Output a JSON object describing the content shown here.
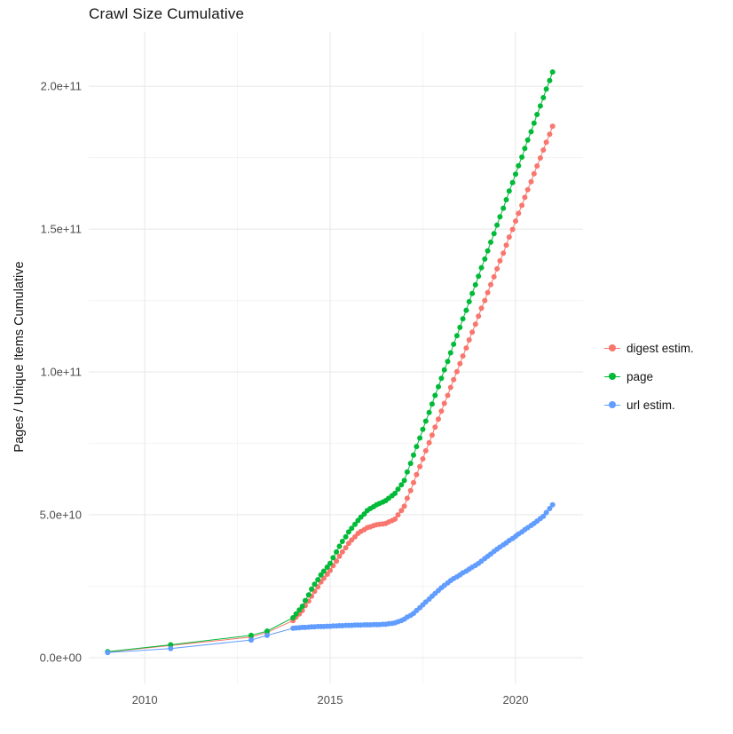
{
  "chart_data": {
    "type": "scatter",
    "title": "Crawl Size Cumulative",
    "xlabel": "",
    "ylabel": "Pages / Unique Items Cumulative",
    "legend_position": "right",
    "grid": {
      "on": true,
      "major_color": "#e7e7e7",
      "minor_color": "#f3f3f3"
    },
    "x_unit": "year",
    "y_values_in": "1e9 items",
    "xlim": [
      2008.49,
      2021.82
    ],
    "ylim_e9": [
      -9,
      219
    ],
    "xticks": [
      {
        "value": 2010,
        "label": "2010"
      },
      {
        "value": 2015,
        "label": "2015"
      },
      {
        "value": 2020,
        "label": "2020"
      }
    ],
    "yticks": [
      {
        "value_e9": 0,
        "label": "0.0e+00"
      },
      {
        "value_e9": 50,
        "label": "5.0e+10"
      },
      {
        "value_e9": 100,
        "label": "1.0e+11"
      },
      {
        "value_e9": 150,
        "label": "1.5e+11"
      },
      {
        "value_e9": 200,
        "label": "2.0e+11"
      }
    ],
    "x_minor": [
      2012.5,
      2017.5
    ],
    "y_minor_e9": [
      25,
      75,
      125,
      175
    ],
    "series": [
      {
        "name": "digest estim.",
        "color": "#F8766D",
        "points": [
          [
            2009.0,
            2.0
          ],
          [
            2010.7,
            4.3
          ],
          [
            2012.87,
            7.2
          ],
          [
            2013.3,
            8.8
          ],
          [
            2014.0,
            13.0
          ],
          [
            2014.08,
            14.2
          ],
          [
            2014.17,
            15.3
          ],
          [
            2014.25,
            16.5
          ],
          [
            2014.33,
            18.2
          ],
          [
            2014.42,
            19.8
          ],
          [
            2014.5,
            21.5
          ],
          [
            2014.58,
            23.2
          ],
          [
            2014.67,
            24.8
          ],
          [
            2014.75,
            26.5
          ],
          [
            2014.83,
            27.8
          ],
          [
            2014.92,
            29.2
          ],
          [
            2015.0,
            30.5
          ],
          [
            2015.08,
            32.2
          ],
          [
            2015.17,
            33.8
          ],
          [
            2015.25,
            35.5
          ],
          [
            2015.33,
            37.0
          ],
          [
            2015.42,
            38.5
          ],
          [
            2015.5,
            40.0
          ],
          [
            2015.58,
            41.2
          ],
          [
            2015.67,
            42.3
          ],
          [
            2015.75,
            43.5
          ],
          [
            2015.83,
            44.2
          ],
          [
            2015.92,
            44.8
          ],
          [
            2016.0,
            45.5
          ],
          [
            2016.08,
            45.8
          ],
          [
            2016.17,
            46.2
          ],
          [
            2016.25,
            46.5
          ],
          [
            2016.33,
            46.7
          ],
          [
            2016.42,
            46.8
          ],
          [
            2016.5,
            47.0
          ],
          [
            2016.58,
            47.5
          ],
          [
            2016.67,
            48.0
          ],
          [
            2016.75,
            48.5
          ],
          [
            2016.83,
            50.0
          ],
          [
            2016.92,
            51.5
          ],
          [
            2017.0,
            53.0
          ],
          [
            2017.08,
            55.8
          ],
          [
            2017.17,
            58.5
          ],
          [
            2017.25,
            61.3
          ],
          [
            2017.33,
            64.1
          ],
          [
            2017.42,
            66.9
          ],
          [
            2017.5,
            69.6
          ],
          [
            2017.58,
            72.4
          ],
          [
            2017.67,
            75.2
          ],
          [
            2017.75,
            77.9
          ],
          [
            2017.83,
            80.7
          ],
          [
            2017.92,
            83.5
          ],
          [
            2018.0,
            86.3
          ],
          [
            2018.08,
            89.0
          ],
          [
            2018.17,
            91.8
          ],
          [
            2018.25,
            94.6
          ],
          [
            2018.33,
            97.3
          ],
          [
            2018.42,
            100.1
          ],
          [
            2018.5,
            102.9
          ],
          [
            2018.58,
            105.6
          ],
          [
            2018.67,
            108.4
          ],
          [
            2018.75,
            111.2
          ],
          [
            2018.83,
            113.9
          ],
          [
            2018.92,
            116.7
          ],
          [
            2019.0,
            119.5
          ],
          [
            2019.08,
            122.3
          ],
          [
            2019.17,
            125.0
          ],
          [
            2019.25,
            127.8
          ],
          [
            2019.33,
            130.6
          ],
          [
            2019.42,
            133.3
          ],
          [
            2019.5,
            136.1
          ],
          [
            2019.58,
            138.9
          ],
          [
            2019.67,
            141.6
          ],
          [
            2019.75,
            144.4
          ],
          [
            2019.83,
            147.2
          ],
          [
            2019.92,
            149.9
          ],
          [
            2020.0,
            152.8
          ],
          [
            2020.08,
            155.5
          ],
          [
            2020.17,
            158.3
          ],
          [
            2020.25,
            161.1
          ],
          [
            2020.33,
            163.8
          ],
          [
            2020.42,
            166.6
          ],
          [
            2020.5,
            169.4
          ],
          [
            2020.58,
            172.1
          ],
          [
            2020.67,
            174.9
          ],
          [
            2020.75,
            177.7
          ],
          [
            2020.83,
            180.4
          ],
          [
            2020.92,
            183.2
          ],
          [
            2021.0,
            186.0
          ]
        ]
      },
      {
        "name": "page",
        "color": "#00BA38",
        "points": [
          [
            2009.0,
            2.1
          ],
          [
            2010.7,
            4.5
          ],
          [
            2012.87,
            7.8
          ],
          [
            2013.3,
            9.3
          ],
          [
            2014.0,
            14.0
          ],
          [
            2014.08,
            15.3
          ],
          [
            2014.17,
            16.7
          ],
          [
            2014.25,
            18.0
          ],
          [
            2014.33,
            20.0
          ],
          [
            2014.42,
            22.0
          ],
          [
            2014.5,
            24.0
          ],
          [
            2014.58,
            25.7
          ],
          [
            2014.67,
            27.3
          ],
          [
            2014.75,
            29.0
          ],
          [
            2014.83,
            30.3
          ],
          [
            2014.92,
            31.7
          ],
          [
            2015.0,
            33.0
          ],
          [
            2015.08,
            35.0
          ],
          [
            2015.17,
            37.0
          ],
          [
            2015.25,
            39.0
          ],
          [
            2015.33,
            40.7
          ],
          [
            2015.42,
            42.3
          ],
          [
            2015.5,
            44.0
          ],
          [
            2015.58,
            45.3
          ],
          [
            2015.67,
            46.7
          ],
          [
            2015.75,
            48.0
          ],
          [
            2015.83,
            49.2
          ],
          [
            2015.92,
            50.3
          ],
          [
            2016.0,
            51.5
          ],
          [
            2016.08,
            52.2
          ],
          [
            2016.17,
            52.8
          ],
          [
            2016.25,
            53.5
          ],
          [
            2016.33,
            54.0
          ],
          [
            2016.42,
            54.5
          ],
          [
            2016.5,
            55.0
          ],
          [
            2016.58,
            55.8
          ],
          [
            2016.67,
            56.7
          ],
          [
            2016.75,
            57.5
          ],
          [
            2016.83,
            59.0
          ],
          [
            2016.92,
            60.5
          ],
          [
            2017.0,
            62.0
          ],
          [
            2017.08,
            65.0
          ],
          [
            2017.17,
            68.0
          ],
          [
            2017.25,
            70.9
          ],
          [
            2017.33,
            73.9
          ],
          [
            2017.42,
            76.9
          ],
          [
            2017.5,
            79.9
          ],
          [
            2017.58,
            82.8
          ],
          [
            2017.67,
            85.8
          ],
          [
            2017.75,
            88.8
          ],
          [
            2017.83,
            91.8
          ],
          [
            2017.92,
            94.8
          ],
          [
            2018.0,
            97.8
          ],
          [
            2018.08,
            100.7
          ],
          [
            2018.17,
            103.7
          ],
          [
            2018.25,
            106.7
          ],
          [
            2018.33,
            109.7
          ],
          [
            2018.42,
            112.7
          ],
          [
            2018.5,
            115.6
          ],
          [
            2018.58,
            118.6
          ],
          [
            2018.67,
            121.6
          ],
          [
            2018.75,
            124.6
          ],
          [
            2018.83,
            127.5
          ],
          [
            2018.92,
            130.5
          ],
          [
            2019.0,
            133.5
          ],
          [
            2019.08,
            136.5
          ],
          [
            2019.17,
            139.5
          ],
          [
            2019.25,
            142.4
          ],
          [
            2019.33,
            145.4
          ],
          [
            2019.42,
            148.4
          ],
          [
            2019.5,
            151.4
          ],
          [
            2019.58,
            154.3
          ],
          [
            2019.67,
            157.3
          ],
          [
            2019.75,
            160.3
          ],
          [
            2019.83,
            163.3
          ],
          [
            2019.92,
            166.3
          ],
          [
            2020.0,
            169.2
          ],
          [
            2020.08,
            172.2
          ],
          [
            2020.17,
            175.2
          ],
          [
            2020.25,
            178.2
          ],
          [
            2020.33,
            181.2
          ],
          [
            2020.42,
            184.1
          ],
          [
            2020.5,
            187.1
          ],
          [
            2020.58,
            190.1
          ],
          [
            2020.67,
            193.1
          ],
          [
            2020.75,
            196.0
          ],
          [
            2020.83,
            199.0
          ],
          [
            2020.92,
            202.0
          ],
          [
            2021.0,
            205.0
          ]
        ]
      },
      {
        "name": "url estim.",
        "color": "#619CFF",
        "points": [
          [
            2009.0,
            1.8
          ],
          [
            2010.7,
            3.2
          ],
          [
            2012.87,
            6.2
          ],
          [
            2013.3,
            7.8
          ],
          [
            2014.0,
            10.3
          ],
          [
            2014.08,
            10.4
          ],
          [
            2014.17,
            10.5
          ],
          [
            2014.25,
            10.6
          ],
          [
            2014.33,
            10.6
          ],
          [
            2014.42,
            10.7
          ],
          [
            2014.5,
            10.8
          ],
          [
            2014.58,
            10.8
          ],
          [
            2014.67,
            10.9
          ],
          [
            2014.75,
            10.9
          ],
          [
            2014.83,
            10.9
          ],
          [
            2014.92,
            11.0
          ],
          [
            2015.0,
            11.0
          ],
          [
            2015.08,
            11.1
          ],
          [
            2015.17,
            11.1
          ],
          [
            2015.25,
            11.2
          ],
          [
            2015.33,
            11.2
          ],
          [
            2015.42,
            11.3
          ],
          [
            2015.5,
            11.3
          ],
          [
            2015.58,
            11.3
          ],
          [
            2015.67,
            11.4
          ],
          [
            2015.75,
            11.4
          ],
          [
            2015.83,
            11.4
          ],
          [
            2015.92,
            11.5
          ],
          [
            2016.0,
            11.5
          ],
          [
            2016.08,
            11.5
          ],
          [
            2016.17,
            11.6
          ],
          [
            2016.25,
            11.6
          ],
          [
            2016.33,
            11.6
          ],
          [
            2016.42,
            11.7
          ],
          [
            2016.5,
            11.7
          ],
          [
            2016.58,
            11.9
          ],
          [
            2016.67,
            12.0
          ],
          [
            2016.75,
            12.2
          ],
          [
            2016.83,
            12.6
          ],
          [
            2016.92,
            13.0
          ],
          [
            2017.0,
            13.5
          ],
          [
            2017.08,
            14.2
          ],
          [
            2017.17,
            14.8
          ],
          [
            2017.25,
            15.5
          ],
          [
            2017.33,
            16.5
          ],
          [
            2017.42,
            17.5
          ],
          [
            2017.5,
            18.5
          ],
          [
            2017.58,
            19.5
          ],
          [
            2017.67,
            20.5
          ],
          [
            2017.75,
            21.5
          ],
          [
            2017.83,
            22.5
          ],
          [
            2017.92,
            23.5
          ],
          [
            2018.0,
            24.5
          ],
          [
            2018.08,
            25.3
          ],
          [
            2018.17,
            26.2
          ],
          [
            2018.25,
            27.0
          ],
          [
            2018.33,
            27.7
          ],
          [
            2018.42,
            28.3
          ],
          [
            2018.5,
            29.0
          ],
          [
            2018.58,
            29.7
          ],
          [
            2018.67,
            30.3
          ],
          [
            2018.75,
            31.0
          ],
          [
            2018.83,
            31.7
          ],
          [
            2018.92,
            32.3
          ],
          [
            2019.0,
            33.0
          ],
          [
            2019.08,
            33.8
          ],
          [
            2019.17,
            34.7
          ],
          [
            2019.25,
            35.5
          ],
          [
            2019.33,
            36.3
          ],
          [
            2019.42,
            37.2
          ],
          [
            2019.5,
            38.0
          ],
          [
            2019.58,
            38.7
          ],
          [
            2019.67,
            39.5
          ],
          [
            2019.75,
            40.2
          ],
          [
            2019.83,
            41.0
          ],
          [
            2019.92,
            41.7
          ],
          [
            2020.0,
            42.5
          ],
          [
            2020.08,
            43.3
          ],
          [
            2020.17,
            44.0
          ],
          [
            2020.25,
            44.8
          ],
          [
            2020.33,
            45.5
          ],
          [
            2020.42,
            46.3
          ],
          [
            2020.5,
            47.0
          ],
          [
            2020.58,
            47.8
          ],
          [
            2020.67,
            48.7
          ],
          [
            2020.75,
            49.5
          ],
          [
            2020.83,
            50.8
          ],
          [
            2020.92,
            52.2
          ],
          [
            2021.0,
            53.5
          ]
        ]
      }
    ]
  }
}
